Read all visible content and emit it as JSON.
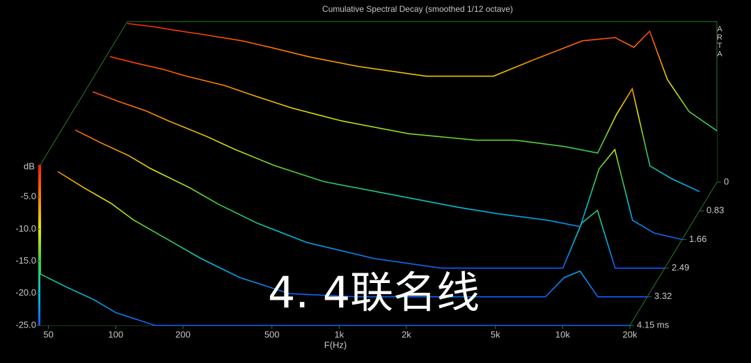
{
  "chart_data": {
    "type": "waterfall",
    "title": "Cumulative Spectral Decay (smoothed 1/12 octave)",
    "brand": "ARTA",
    "watermark": "4. 4联名线",
    "x_label": "F(Hz)",
    "y_label": "dB",
    "log_x": true,
    "xlim": [
      46,
      20000
    ],
    "xticks": [
      50,
      100,
      200,
      500,
      {
        "value": 1000,
        "label": "1k"
      },
      {
        "value": 2000,
        "label": "2k"
      },
      {
        "value": 5000,
        "label": "5k"
      },
      {
        "value": 10000,
        "label": "10k"
      },
      {
        "value": 20000,
        "label": "20k"
      }
    ],
    "ylim": [
      -25,
      0
    ],
    "yticks": [
      {
        "value": -5,
        "label": "-5.0"
      },
      {
        "value": -10,
        "label": "-10.0"
      },
      {
        "value": -15,
        "label": "-15.0"
      },
      {
        "value": -20,
        "label": "-20.0"
      },
      {
        "value": -25,
        "label": "-25.0"
      }
    ],
    "zlim": [
      0,
      4.15
    ],
    "zticks": [
      0,
      0.83,
      1.66,
      2.49,
      3.32,
      {
        "value": 4.15,
        "label": "4.15 ms"
      }
    ],
    "colormap": [
      "#ff2000",
      "#ff8000",
      "#e8e800",
      "#40d040",
      "#00c0e0",
      "#1060ff"
    ],
    "x": [
      46,
      60,
      80,
      100,
      150,
      200,
      300,
      500,
      1000,
      2000,
      3000,
      5000,
      7000,
      8500,
      10000,
      12000,
      15000,
      20000
    ],
    "slices": [
      {
        "z": 0,
        "values": [
          -0.3,
          -0.8,
          -1.5,
          -2,
          -3,
          -4,
          -5.5,
          -7,
          -8.5,
          -8.5,
          -6,
          -3,
          -2.5,
          -4,
          -1.5,
          -9,
          -14,
          -17
        ]
      },
      {
        "z": 0.83,
        "values": [
          -1,
          -2,
          -3,
          -4,
          -5.5,
          -7,
          -9,
          -11,
          -13,
          -14,
          -14,
          -15,
          -16,
          -10,
          -6,
          -18,
          -20,
          -22
        ]
      },
      {
        "z": 1.66,
        "values": [
          -2,
          -3.5,
          -5,
          -6.5,
          -9,
          -11,
          -13.5,
          -16,
          -18,
          -20,
          -21,
          -22,
          -23,
          -14,
          -11,
          -22,
          -24,
          -25
        ]
      },
      {
        "z": 2.49,
        "values": [
          -3.5,
          -5.5,
          -7.5,
          -9.5,
          -12.5,
          -15,
          -18,
          -21,
          -23.5,
          -25,
          -25,
          -25,
          -25,
          -18,
          -16,
          -25,
          -25,
          -25
        ]
      },
      {
        "z": 3.32,
        "values": [
          -5.5,
          -8,
          -10.5,
          -13,
          -16.5,
          -19,
          -22,
          -24.5,
          -25,
          -25,
          -25,
          -25,
          -25,
          -22,
          -21,
          -25,
          -25,
          -25
        ]
      },
      {
        "z": 4.15,
        "values": [
          -17,
          -19,
          -21,
          -23,
          -25,
          -25,
          -25,
          -25,
          -25,
          -25,
          -25,
          -25,
          -25,
          -25,
          -25,
          -25,
          -25,
          -25
        ]
      }
    ]
  }
}
